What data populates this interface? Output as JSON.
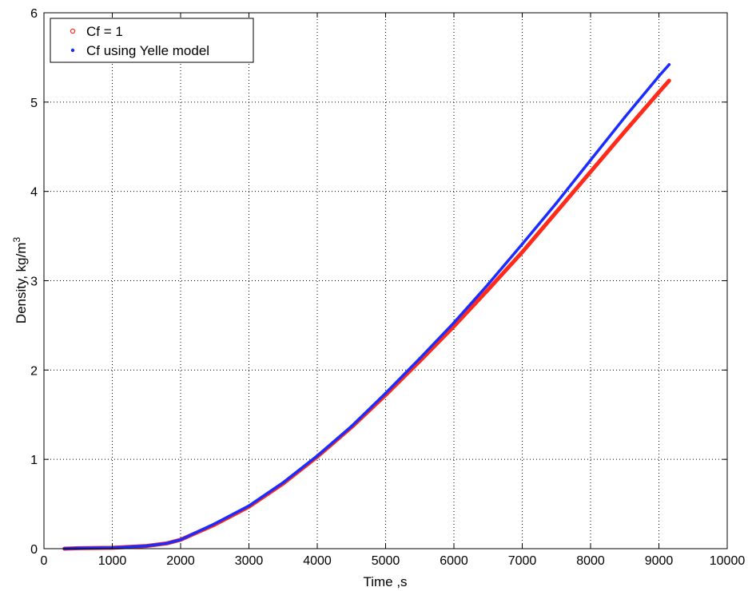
{
  "chart_data": {
    "type": "line",
    "xlabel": "Time ,s",
    "ylabel_base": "Density, kg/m",
    "ylabel_sup": "3",
    "xlim": [
      0,
      10000
    ],
    "ylim": [
      0,
      6
    ],
    "xticks": [
      0,
      1000,
      2000,
      3000,
      4000,
      5000,
      6000,
      7000,
      8000,
      9000,
      10000
    ],
    "yticks": [
      0,
      1,
      2,
      3,
      4,
      5,
      6
    ],
    "xtick_labels": [
      "0",
      "1000",
      "2000",
      "3000",
      "4000",
      "5000",
      "6000",
      "7000",
      "8000",
      "9000",
      "10000"
    ],
    "ytick_labels": [
      "0",
      "1",
      "2",
      "3",
      "4",
      "5",
      "6"
    ],
    "grid": true,
    "legend_position": "top-left",
    "series": [
      {
        "name": "Cf = 1",
        "color": "#ff2a1a",
        "marker": "circle",
        "x": [
          300,
          500,
          1000,
          1500,
          1800,
          2000,
          2500,
          3000,
          3500,
          4000,
          4500,
          5000,
          5500,
          6000,
          6500,
          7000,
          7500,
          8000,
          8500,
          9000,
          9150
        ],
        "y": [
          0.0,
          0.005,
          0.01,
          0.03,
          0.06,
          0.1,
          0.27,
          0.47,
          0.73,
          1.03,
          1.36,
          1.72,
          2.1,
          2.49,
          2.9,
          3.32,
          3.77,
          4.22,
          4.67,
          5.11,
          5.24
        ]
      },
      {
        "name": "Cf using Yelle model",
        "color": "#1a2cff",
        "marker": "point",
        "x": [
          300,
          500,
          1000,
          1500,
          1800,
          2000,
          2500,
          3000,
          3500,
          4000,
          4500,
          5000,
          5500,
          6000,
          6500,
          7000,
          7500,
          8000,
          8500,
          9000,
          9150
        ],
        "y": [
          0.0,
          0.005,
          0.01,
          0.03,
          0.06,
          0.1,
          0.28,
          0.48,
          0.74,
          1.04,
          1.37,
          1.74,
          2.13,
          2.53,
          2.96,
          3.41,
          3.87,
          4.35,
          4.83,
          5.29,
          5.42
        ]
      }
    ]
  }
}
